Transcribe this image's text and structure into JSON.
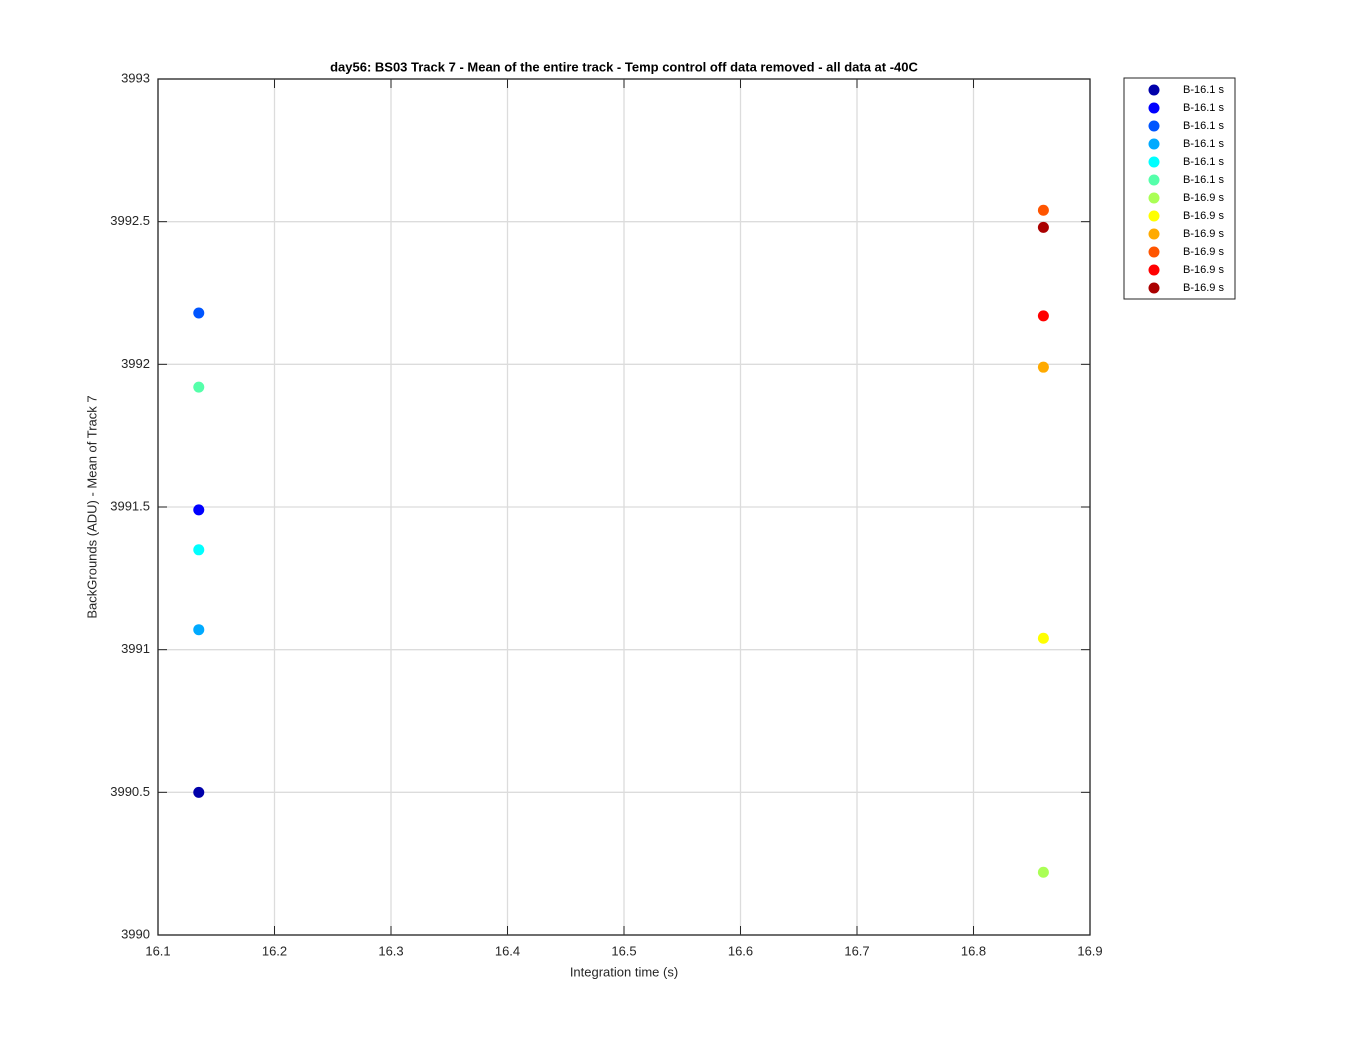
{
  "chart_data": {
    "type": "scatter",
    "title": "day56: BS03  Track 7 - Mean of the entire track - Temp control off data removed - all data at -40C",
    "x_label": "Integration time (s)",
    "y_label": "BackGrounds (ADU) - Mean of Track 7",
    "xlim": [
      16.1,
      16.9
    ],
    "xticks": [
      16.1,
      16.2,
      16.3,
      16.4,
      16.5,
      16.6,
      16.7,
      16.8,
      16.9
    ],
    "ylim": [
      3990,
      3993
    ],
    "yticks": [
      3990,
      3990.5,
      3991,
      3991.5,
      3992,
      3992.5,
      3993
    ],
    "grid": true,
    "legend_position": "outside-right",
    "series": [
      {
        "name": "B-16.1 s",
        "color": "#0000aa",
        "x": [
          16.135
        ],
        "values": [
          3990.5
        ]
      },
      {
        "name": "B-16.1 s",
        "color": "#0000ff",
        "x": [
          16.135
        ],
        "values": [
          3991.49
        ]
      },
      {
        "name": "B-16.1 s",
        "color": "#0055ff",
        "x": [
          16.135
        ],
        "values": [
          3992.18
        ]
      },
      {
        "name": "B-16.1 s",
        "color": "#00aaff",
        "x": [
          16.135
        ],
        "values": [
          3991.07
        ]
      },
      {
        "name": "B-16.1 s",
        "color": "#00ffff",
        "x": [
          16.135
        ],
        "values": [
          3991.35
        ]
      },
      {
        "name": "B-16.1 s",
        "color": "#55ffaa",
        "x": [
          16.135
        ],
        "values": [
          3991.92
        ]
      },
      {
        "name": "B-16.9 s",
        "color": "#aaff55",
        "x": [
          16.86
        ],
        "values": [
          3990.22
        ]
      },
      {
        "name": "B-16.9 s",
        "color": "#ffff00",
        "x": [
          16.86
        ],
        "values": [
          3991.04
        ]
      },
      {
        "name": "B-16.9 s",
        "color": "#ffaa00",
        "x": [
          16.86
        ],
        "values": [
          3991.99
        ]
      },
      {
        "name": "B-16.9 s",
        "color": "#ff5500",
        "x": [
          16.86
        ],
        "values": [
          3992.54
        ]
      },
      {
        "name": "B-16.9 s",
        "color": "#ff0000",
        "x": [
          16.86
        ],
        "values": [
          3992.17
        ]
      },
      {
        "name": "B-16.9 s",
        "color": "#aa0000",
        "x": [
          16.86
        ],
        "values": [
          3992.48
        ]
      }
    ]
  }
}
